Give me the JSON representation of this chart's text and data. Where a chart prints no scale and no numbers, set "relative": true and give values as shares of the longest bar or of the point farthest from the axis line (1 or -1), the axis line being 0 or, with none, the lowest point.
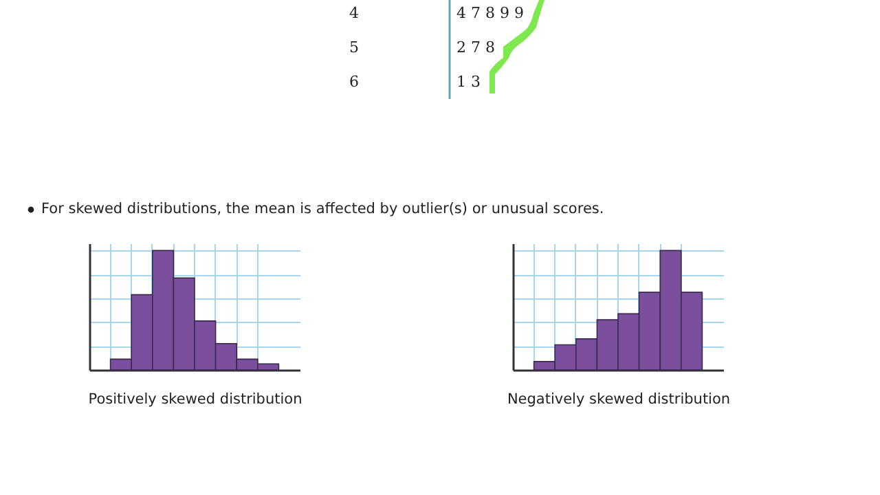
{
  "chart_data": [
    {
      "type": "other",
      "annotations": [
        "4",
        "4 7 8 9 9",
        "5",
        "2 7 8",
        "6",
        "1 3",
        "For skewed distributions, the mean is affected by outlier(s) or unusual scores."
      ]
    },
    {
      "type": "bar",
      "relative": true,
      "xlabel": "Positively skewed distribution",
      "categories": [
        null,
        null,
        null,
        null,
        null,
        null,
        null,
        null
      ],
      "grid": true,
      "series": [
        {
          "color": "#7b4f9d",
          "values": [
            0.09,
            0.63,
            1,
            0.77,
            0.41,
            0.22,
            0.09,
            0.05
          ]
        }
      ]
    },
    {
      "type": "bar",
      "relative": true,
      "xlabel": "Negatively skewed distribution",
      "categories": [
        null,
        null,
        null,
        null,
        null,
        null,
        null,
        null
      ],
      "grid": true,
      "series": [
        {
          "color": "#7b4f9d",
          "values": [
            0.07,
            0.21,
            0.26,
            0.42,
            0.47,
            0.65,
            1,
            0.65
          ]
        }
      ]
    }
  ]
}
